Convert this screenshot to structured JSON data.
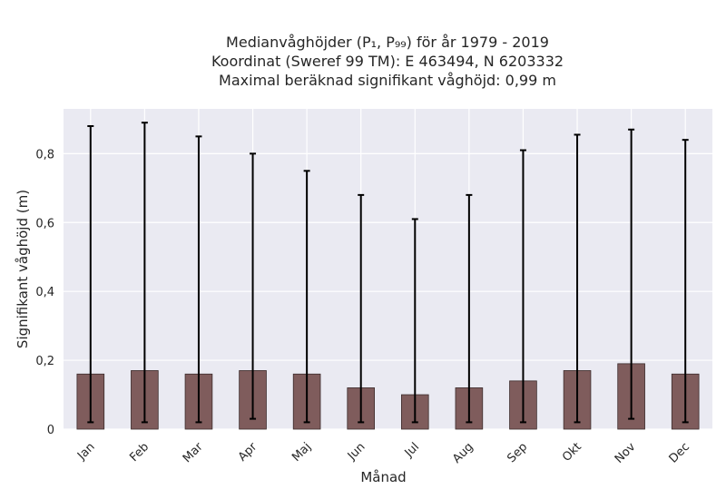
{
  "chart_data": {
    "type": "bar",
    "title_lines": [
      "Medianvåghöjder (P₁, P₉₉) för år 1979 - 2019",
      "Koordinat (Sweref 99 TM): E 463494, N 6203332",
      "Maximal beräknad signifikant våghöjd: 0,99 m"
    ],
    "xlabel": "Månad",
    "ylabel": "Signifikant våghöjd (m)",
    "categories": [
      "Jan",
      "Feb",
      "Mar",
      "Apr",
      "Maj",
      "Jun",
      "Jul",
      "Aug",
      "Sep",
      "Okt",
      "Nov",
      "Dec"
    ],
    "values": [
      0.16,
      0.17,
      0.16,
      0.17,
      0.16,
      0.12,
      0.1,
      0.12,
      0.14,
      0.17,
      0.19,
      0.16
    ],
    "error_low": [
      0.02,
      0.02,
      0.02,
      0.03,
      0.02,
      0.02,
      0.02,
      0.02,
      0.02,
      0.02,
      0.03,
      0.02
    ],
    "error_high": [
      0.88,
      0.89,
      0.85,
      0.8,
      0.75,
      0.68,
      0.61,
      0.68,
      0.81,
      0.855,
      0.87,
      0.84
    ],
    "ylim": [
      0,
      0.93
    ],
    "yticks": [
      0,
      0.2,
      0.4,
      0.6,
      0.8
    ],
    "ytick_labels": [
      "0",
      "0,2",
      "0,4",
      "0,6",
      "0,8"
    ],
    "bar_color": "#7f5c5c",
    "bar_edge_color": "#3b2b2b",
    "error_color": "#000000",
    "plot_bg": "#eaeaf2",
    "grid_color": "#ffffff",
    "grid": true
  }
}
